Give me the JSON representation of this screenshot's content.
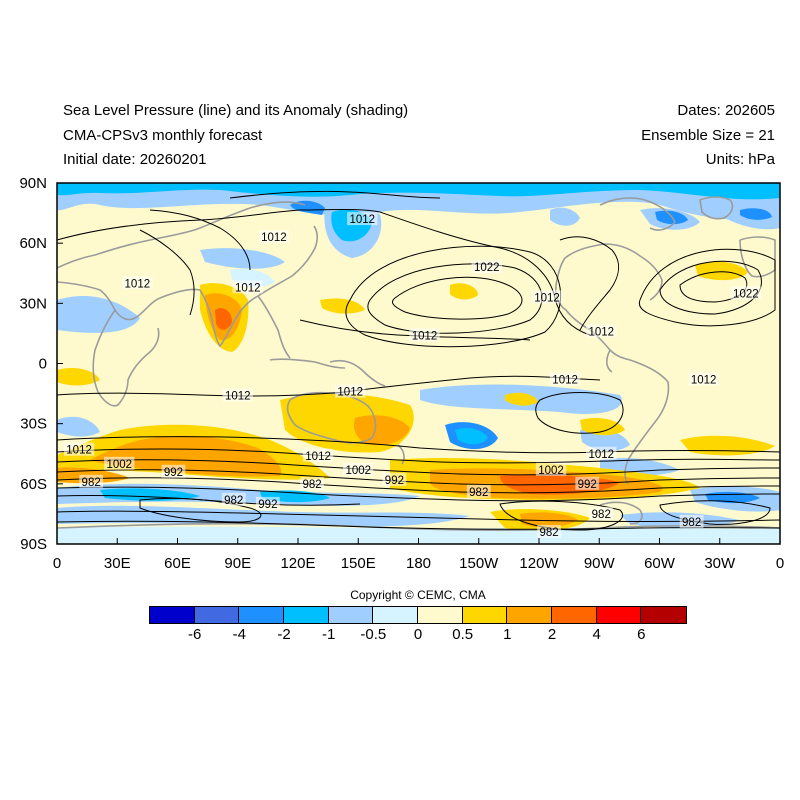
{
  "header": {
    "title": "Sea Level Pressure (line) and its Anomaly (shading)",
    "model": "CMA-CPSv3 monthly forecast",
    "initial_date": "Initial date: 20260201",
    "dates": "Dates: 202605",
    "ensemble": "Ensemble Size = 21",
    "units": "Units: hPa"
  },
  "map": {
    "lat_ticks": [
      "90N",
      "60N",
      "30N",
      "0",
      "30S",
      "60S",
      "90S"
    ],
    "lon_ticks": [
      "0",
      "30E",
      "60E",
      "90E",
      "120E",
      "150E",
      "180",
      "150W",
      "120W",
      "90W",
      "60W",
      "30W",
      "0"
    ],
    "contour_labels": [
      {
        "text": "1012",
        "lon": 152,
        "lat": 72
      },
      {
        "text": "1012",
        "lon": 108,
        "lat": 63
      },
      {
        "text": "1012",
        "lon": 40,
        "lat": 40
      },
      {
        "text": "1012",
        "lon": 95,
        "lat": 38
      },
      {
        "text": "1022",
        "lon": 214,
        "lat": 48
      },
      {
        "text": "1012",
        "lon": 244,
        "lat": 33
      },
      {
        "text": "1012",
        "lon": 271,
        "lat": 16
      },
      {
        "text": "1022",
        "lon": 343,
        "lat": 35
      },
      {
        "text": "1012",
        "lon": 183,
        "lat": 14
      },
      {
        "text": "1012",
        "lon": 90,
        "lat": -16
      },
      {
        "text": "1012",
        "lon": 146,
        "lat": -14
      },
      {
        "text": "1012",
        "lon": 253,
        "lat": -8
      },
      {
        "text": "1012",
        "lon": 322,
        "lat": -8
      },
      {
        "text": "1012",
        "lon": 11,
        "lat": -43
      },
      {
        "text": "1002",
        "lon": 31,
        "lat": -50
      },
      {
        "text": "992",
        "lon": 58,
        "lat": -54
      },
      {
        "text": "982",
        "lon": 17,
        "lat": -59
      },
      {
        "text": "1012",
        "lon": 130,
        "lat": -46
      },
      {
        "text": "1002",
        "lon": 150,
        "lat": -53
      },
      {
        "text": "992",
        "lon": 168,
        "lat": -58
      },
      {
        "text": "982",
        "lon": 127,
        "lat": -60
      },
      {
        "text": "982",
        "lon": 88,
        "lat": -68
      },
      {
        "text": "992",
        "lon": 105,
        "lat": -70
      },
      {
        "text": "1002",
        "lon": 246,
        "lat": -53
      },
      {
        "text": "992",
        "lon": 264,
        "lat": -60
      },
      {
        "text": "982",
        "lon": 210,
        "lat": -64
      },
      {
        "text": "1012",
        "lon": 271,
        "lat": -45
      },
      {
        "text": "982",
        "lon": 271,
        "lat": -75
      },
      {
        "text": "982",
        "lon": 245,
        "lat": -84
      },
      {
        "text": "982",
        "lon": 316,
        "lat": -79
      }
    ],
    "colors": {
      "contour": "#000000",
      "coastline": "#9b9b9b",
      "frame": "#000000"
    }
  },
  "copyright": "Copyright © CEMC, CMA",
  "colorbar": {
    "colors": [
      "#0000cd",
      "#4169e1",
      "#1e90ff",
      "#00bfff",
      "#a0cfff",
      "#d6f4ff",
      "#fffacd",
      "#ffd700",
      "#ffa500",
      "#ff6600",
      "#ff0000",
      "#b40000"
    ],
    "labels": [
      "-6",
      "-4",
      "-2",
      "-1",
      "-0.5",
      "0",
      "0.5",
      "1",
      "2",
      "4",
      "6"
    ]
  }
}
